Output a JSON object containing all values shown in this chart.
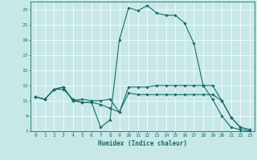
{
  "xlabel": "Humidex (Indice chaleur)",
  "bg_color": "#c8e8e8",
  "line_color": "#1a6b6b",
  "grid_color": "#ffffff",
  "xlim": [
    -0.5,
    23.5
  ],
  "ylim": [
    7,
    24
  ],
  "yticks": [
    7,
    9,
    11,
    13,
    15,
    17,
    19,
    21,
    23
  ],
  "xticks": [
    0,
    1,
    2,
    3,
    4,
    5,
    6,
    7,
    8,
    9,
    10,
    11,
    12,
    13,
    14,
    15,
    16,
    17,
    18,
    19,
    20,
    21,
    22,
    23
  ],
  "curve1_x": [
    0,
    1,
    2,
    3,
    4,
    5,
    6,
    7,
    8,
    9,
    10,
    11,
    12,
    13,
    14,
    15,
    16,
    17,
    18,
    19,
    20,
    21,
    22,
    23
  ],
  "curve1_y": [
    11.5,
    11.2,
    12.5,
    12.5,
    11.2,
    10.8,
    10.8,
    7.5,
    8.5,
    19.0,
    23.2,
    22.8,
    23.5,
    22.5,
    22.2,
    22.2,
    21.2,
    18.5,
    13.0,
    11.2,
    9.0,
    7.5,
    7.2,
    7.0
  ],
  "curve2_x": [
    0,
    1,
    2,
    3,
    4,
    5,
    6,
    7,
    8,
    9,
    10,
    11,
    12,
    13,
    14,
    15,
    16,
    17,
    18,
    19,
    20,
    21,
    22,
    23
  ],
  "curve2_y": [
    11.5,
    11.2,
    12.5,
    12.8,
    11.0,
    10.8,
    10.8,
    10.5,
    10.0,
    9.5,
    12.8,
    12.8,
    12.8,
    13.0,
    13.0,
    13.0,
    13.0,
    13.0,
    13.0,
    13.0,
    11.0,
    8.8,
    7.5,
    7.2
  ],
  "curve3_x": [
    0,
    1,
    2,
    3,
    4,
    5,
    6,
    7,
    8,
    9,
    10,
    11,
    12,
    13,
    14,
    15,
    16,
    17,
    18,
    19,
    20,
    21,
    22,
    23
  ],
  "curve3_y": [
    11.5,
    11.2,
    12.5,
    12.8,
    11.0,
    11.2,
    11.0,
    11.0,
    11.2,
    9.5,
    12.0,
    11.8,
    11.8,
    11.8,
    11.8,
    11.8,
    11.8,
    11.8,
    11.8,
    11.8,
    11.0,
    8.8,
    7.5,
    7.2
  ]
}
